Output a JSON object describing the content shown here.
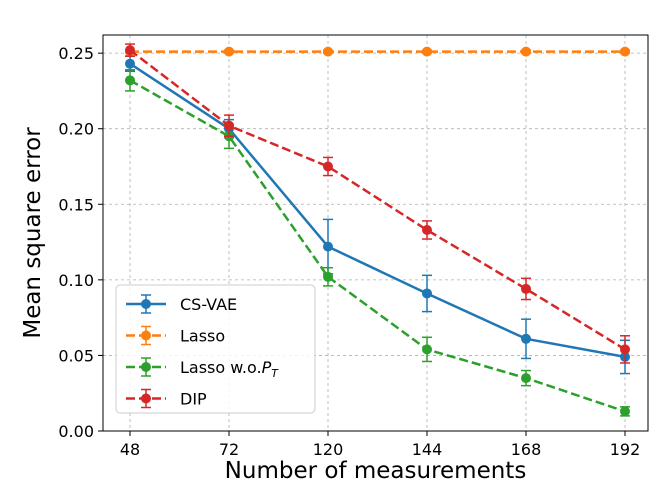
{
  "chart_data": {
    "type": "line",
    "title": "",
    "xlabel": "Number of measurements",
    "ylabel": "Mean square error",
    "categories": [
      "48",
      "72",
      "120",
      "144",
      "168",
      "192"
    ],
    "ylim": [
      0.0,
      0.262
    ],
    "yticks": [
      0.0,
      0.05,
      0.1,
      0.15,
      0.2,
      0.25
    ],
    "ytick_labels": [
      "0.00",
      "0.05",
      "0.10",
      "0.15",
      "0.20",
      "0.25"
    ],
    "grid": true,
    "legend_position": "lower-left",
    "series": [
      {
        "name": "CS-VAE",
        "name_main": "CS-VAE",
        "name_sub": "",
        "color": "#1f77b4",
        "dash": "solid",
        "values": [
          0.243,
          0.2,
          0.122,
          0.091,
          0.061,
          0.049
        ],
        "errors": [
          0.005,
          0.006,
          0.018,
          0.012,
          0.013,
          0.011
        ]
      },
      {
        "name": "Lasso",
        "name_main": "Lasso",
        "name_sub": "",
        "color": "#ff7f0e",
        "dash": "dashed",
        "values": [
          0.251,
          0.251,
          0.251,
          0.251,
          0.251,
          0.251
        ],
        "errors": [
          0.001,
          0.001,
          0.001,
          0.001,
          0.001,
          0.001
        ]
      },
      {
        "name": "Lasso w.o.P_T",
        "name_main": "Lasso w.o.",
        "name_sub": "T",
        "color": "#2ca02c",
        "dash": "dashed",
        "values": [
          0.232,
          0.195,
          0.102,
          0.054,
          0.035,
          0.013
        ],
        "errors": [
          0.007,
          0.008,
          0.006,
          0.008,
          0.005,
          0.003
        ]
      },
      {
        "name": "DIP",
        "name_main": "DIP",
        "name_sub": "",
        "color": "#d62728",
        "dash": "dashed",
        "values": [
          0.252,
          0.202,
          0.175,
          0.133,
          0.094,
          0.054
        ],
        "errors": [
          0.004,
          0.007,
          0.006,
          0.006,
          0.007,
          0.009
        ]
      }
    ]
  }
}
